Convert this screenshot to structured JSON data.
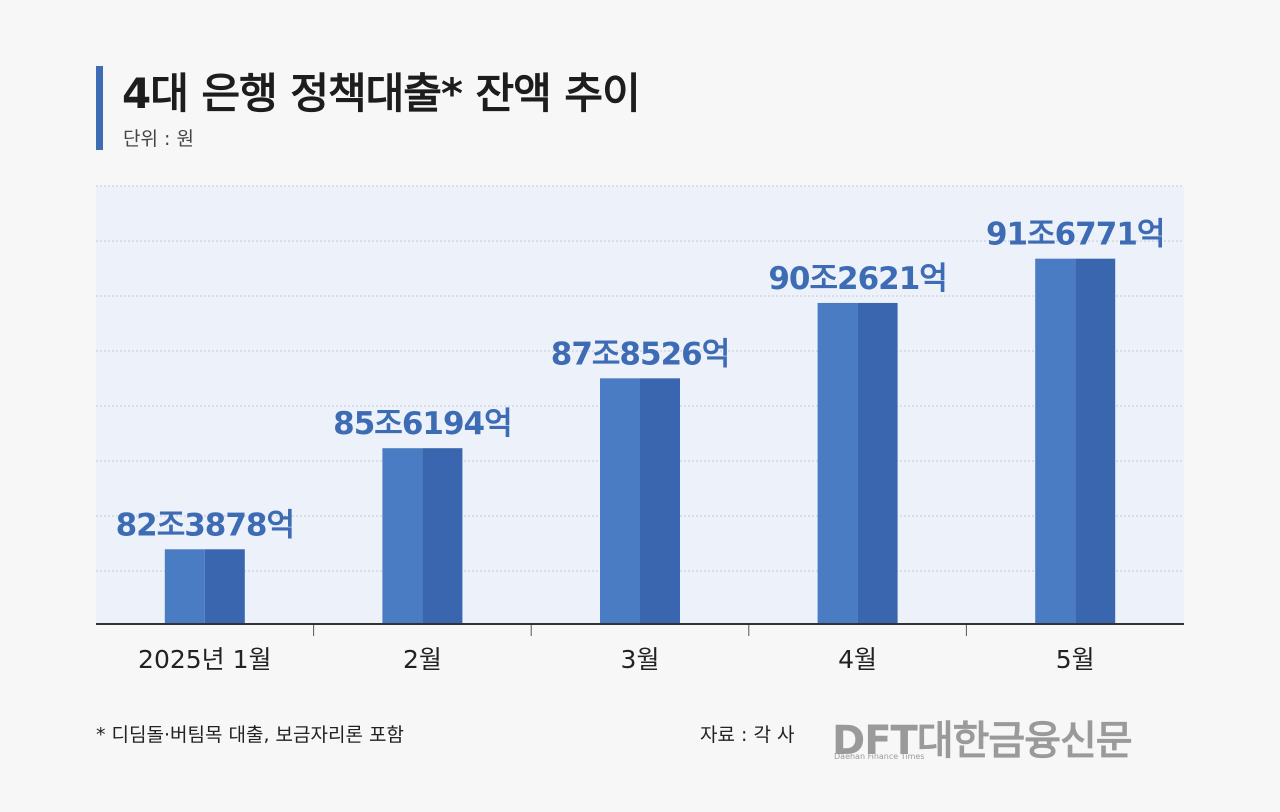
{
  "header": {
    "title": "4대 은행 정책대출* 잔액 추이",
    "unit": "단위 : 원"
  },
  "footer": {
    "footnote": "* 디딤돌·버팀목 대출, 보금자리론 포함",
    "source": "자료 : 각 사",
    "logo_text": "DFT대한금융신문",
    "logo_subtext": "Daehan Finance Times"
  },
  "colors": {
    "bar_light": "#4a7cc4",
    "bar_dark": "#3966ae",
    "label": "#3d6cb4",
    "plot_bg": "#edf1f9"
  },
  "chart_data": {
    "type": "bar",
    "title": "4대 은행 정책대출* 잔액 추이",
    "ylabel": "단위 : 원",
    "grid": true,
    "categories": [
      "2025년 1월",
      "2월",
      "3월",
      "4월",
      "5월"
    ],
    "values": [
      823878,
      856194,
      878526,
      902621,
      916771
    ],
    "value_unit": "억원",
    "data_labels": [
      "82조3878억",
      "85조6194억",
      "87조8526억",
      "90조2621억",
      "91조6771억"
    ],
    "ylim": [
      800000,
      940000
    ]
  }
}
